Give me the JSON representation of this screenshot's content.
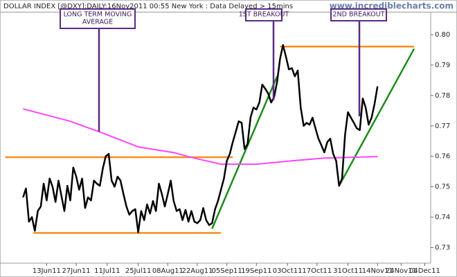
{
  "chart_data": {
    "type": "line",
    "title": "DOLLAR INDEX [@DXY]:DAILY:16Nov2011 00:55 New York : Data Delayed > 15mins",
    "source": "www.incrediblecharts.com",
    "xlim": [
      -6,
      139
    ],
    "xticks": [
      {
        "value": 9,
        "label": "13Jun11"
      },
      {
        "value": 19,
        "label": "27Jun11"
      },
      {
        "value": 29.5,
        "label": "11Jul11"
      },
      {
        "value": 40,
        "label": "25Jul11"
      },
      {
        "value": 50,
        "label": "08Aug11"
      },
      {
        "value": 60,
        "label": "22Aug11"
      },
      {
        "value": 70,
        "label": "05Sep11"
      },
      {
        "value": 80,
        "label": "19Sep11"
      },
      {
        "value": 90.5,
        "label": "03Oct11"
      },
      {
        "value": 100.5,
        "label": "17Oct11"
      },
      {
        "value": 111,
        "label": "31Oct11"
      },
      {
        "value": 121,
        "label": "14Nov11"
      },
      {
        "value": 129,
        "label": "24Nov11"
      },
      {
        "value": 137,
        "label": "04Dec11"
      }
    ],
    "ylim": [
      0.726,
      0.8073
    ],
    "yticks": [
      0.73,
      0.74,
      0.75,
      0.76,
      0.77,
      0.78,
      0.79,
      {
        "value": 0.8,
        "label": "0.80"
      }
    ],
    "series": [
      {
        "color": "#000000",
        "x": [
          1,
          2,
          3,
          4,
          5,
          6,
          7,
          8,
          9,
          10,
          11,
          12,
          13,
          14,
          15,
          16,
          17,
          18,
          19,
          20,
          21,
          22,
          23,
          24,
          25,
          26,
          27,
          28,
          29,
          30,
          31,
          32,
          33,
          34,
          35,
          36,
          37,
          38,
          39,
          40,
          41,
          42,
          43,
          44,
          45,
          46,
          47,
          48,
          49,
          50,
          51,
          52,
          53,
          54,
          55,
          56,
          57,
          58,
          59,
          60,
          61,
          62,
          63,
          64,
          65,
          66,
          67,
          68,
          69,
          70,
          71,
          72,
          73,
          74,
          75,
          76,
          77,
          78,
          79,
          80,
          81,
          82,
          83,
          84,
          85,
          86,
          87,
          88,
          89,
          90,
          91,
          92,
          93,
          94,
          95,
          96,
          97,
          98,
          99,
          100,
          101,
          102,
          103,
          104,
          105,
          106,
          107,
          108,
          109,
          110,
          111,
          112,
          113,
          114,
          115,
          116,
          117,
          118,
          119,
          120,
          121
        ],
        "values": [
          0.7465,
          0.7494,
          0.7385,
          0.74,
          0.7355,
          0.742,
          0.7435,
          0.751,
          0.7455,
          0.7527,
          0.75,
          0.745,
          0.752,
          0.747,
          0.742,
          0.7503,
          0.7455,
          0.7563,
          0.7533,
          0.749,
          0.7527,
          0.743,
          0.7465,
          0.7455,
          0.752,
          0.751,
          0.7503,
          0.756,
          0.76,
          0.7608,
          0.752,
          0.75,
          0.7533,
          0.752,
          0.7476,
          0.7435,
          0.7408,
          0.742,
          0.7426,
          0.735,
          0.742,
          0.739,
          0.7442,
          0.7412,
          0.7453,
          0.742,
          0.751,
          0.7476,
          0.7435,
          0.7476,
          0.752,
          0.7453,
          0.742,
          0.7426,
          0.739,
          0.7424,
          0.7385,
          0.742,
          0.7385,
          0.738,
          0.739,
          0.743,
          0.739,
          0.7374,
          0.738,
          0.7426,
          0.7453,
          0.749,
          0.7527,
          0.7585,
          0.7608,
          0.7647,
          0.768,
          0.7715,
          0.771,
          0.7624,
          0.764,
          0.7727,
          0.776,
          0.7754,
          0.7777,
          0.7836,
          0.7822,
          0.7806,
          0.7777,
          0.7795,
          0.7845,
          0.792,
          0.7966,
          0.7927,
          0.7886,
          0.789,
          0.7863,
          0.7882,
          0.776,
          0.77,
          0.771,
          0.7704,
          0.7727,
          0.7692,
          0.7658,
          0.7636,
          0.7613,
          0.7647,
          0.7658,
          0.7608,
          0.7585,
          0.7503,
          0.7527,
          0.767,
          0.7745,
          0.7727,
          0.771,
          0.7692,
          0.7686,
          0.779,
          0.776,
          0.7704,
          0.7727,
          0.7772,
          0.783
        ]
      },
      {
        "color": "#ff44ff",
        "x": [
          1,
          17,
          27,
          40,
          52,
          59,
          68,
          80,
          92,
          103,
          121
        ],
        "values": [
          0.7756,
          0.7715,
          0.768,
          0.7631,
          0.7612,
          0.7594,
          0.7574,
          0.7574,
          0.7585,
          0.7594,
          0.7599
        ]
      }
    ],
    "reference_lines": [
      {
        "color": "#ff8c1a",
        "x": [
          -5,
          72
        ],
        "values": [
          0.7597,
          0.7597
        ]
      },
      {
        "color": "#ff8c1a",
        "x": [
          4.5,
          68
        ],
        "values": [
          0.7348,
          0.7348
        ]
      },
      {
        "color": "#ff8c1a",
        "x": [
          88,
          133.4
        ],
        "values": [
          0.7961,
          0.7961
        ]
      },
      {
        "color": "#1a8c1a",
        "x": [
          65,
          87
        ],
        "values": [
          0.7362,
          0.7863
        ]
      },
      {
        "color": "#1a8c1a",
        "x": [
          108,
          133.4
        ],
        "values": [
          0.7503,
          0.7954
        ]
      }
    ],
    "annotations": [
      {
        "lines": [
          "LONG TERM MOVING",
          "AVERAGE"
        ]
      },
      {
        "lines": [
          "1ST BREAKOUT"
        ]
      },
      {
        "lines": [
          "2ND BREAKOUT"
        ]
      }
    ]
  }
}
